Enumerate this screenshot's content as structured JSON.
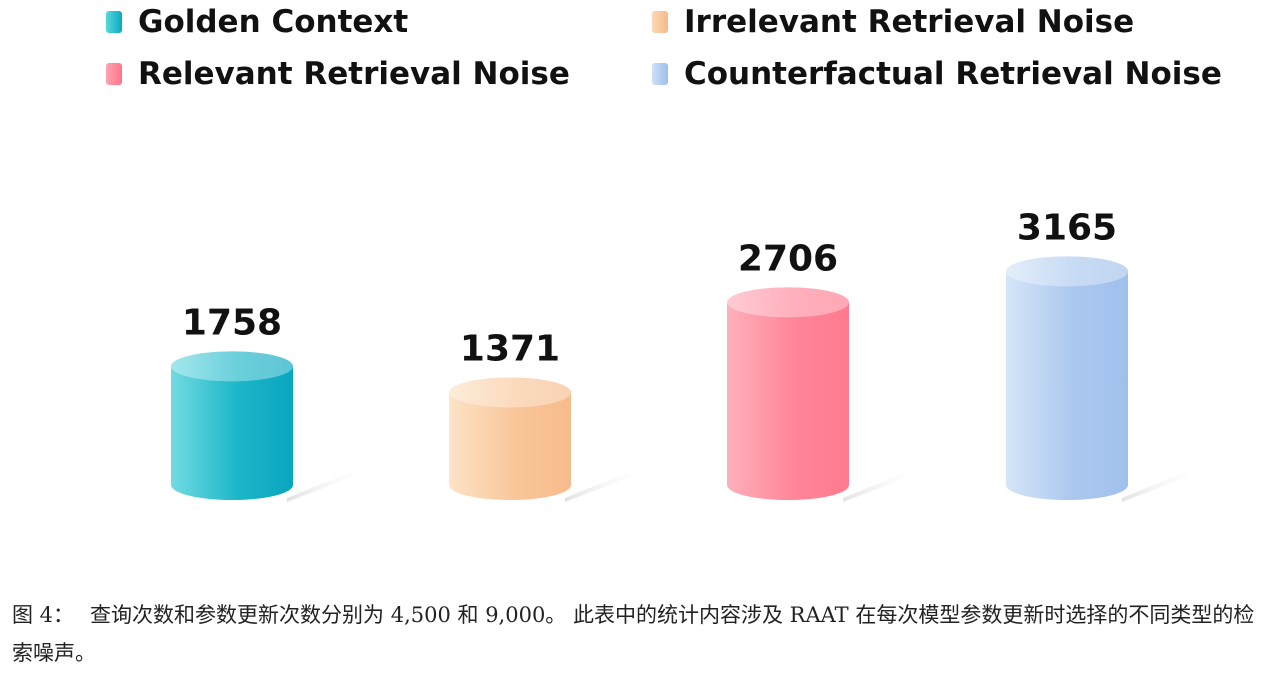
{
  "chart_data": {
    "type": "bar",
    "style": "3d-cylinder",
    "legend_position": "top",
    "grid": false,
    "categories": [
      "Golden Context",
      "Irrelevant Retrieval Noise",
      "Relevant Retrieval Noise",
      "Counterfactual Retrieval Noise"
    ],
    "values": [
      1758,
      1371,
      2706,
      3165
    ],
    "data_labels": [
      "1758",
      "1371",
      "2706",
      "3165"
    ],
    "colors": [
      "#12b3c6",
      "#f8c38f",
      "#ff8597",
      "#a5c6ef"
    ],
    "legend": [
      {
        "label": "Golden Context",
        "color": "#12b3c6"
      },
      {
        "label": "Irrelevant Retrieval Noise",
        "color": "#f8c38f"
      },
      {
        "label": "Relevant Retrieval Noise",
        "color": "#ff8597"
      },
      {
        "label": "Counterfactual Retrieval Noise",
        "color": "#a5c6ef"
      }
    ]
  },
  "caption": {
    "label": "图 4：",
    "text": "查询次数和参数更新次数分别为 4,500 和 9,000。 此表中的统计内容涉及 RAAT 在每次模型参数更新时选择的不同类型的检索噪声。"
  }
}
